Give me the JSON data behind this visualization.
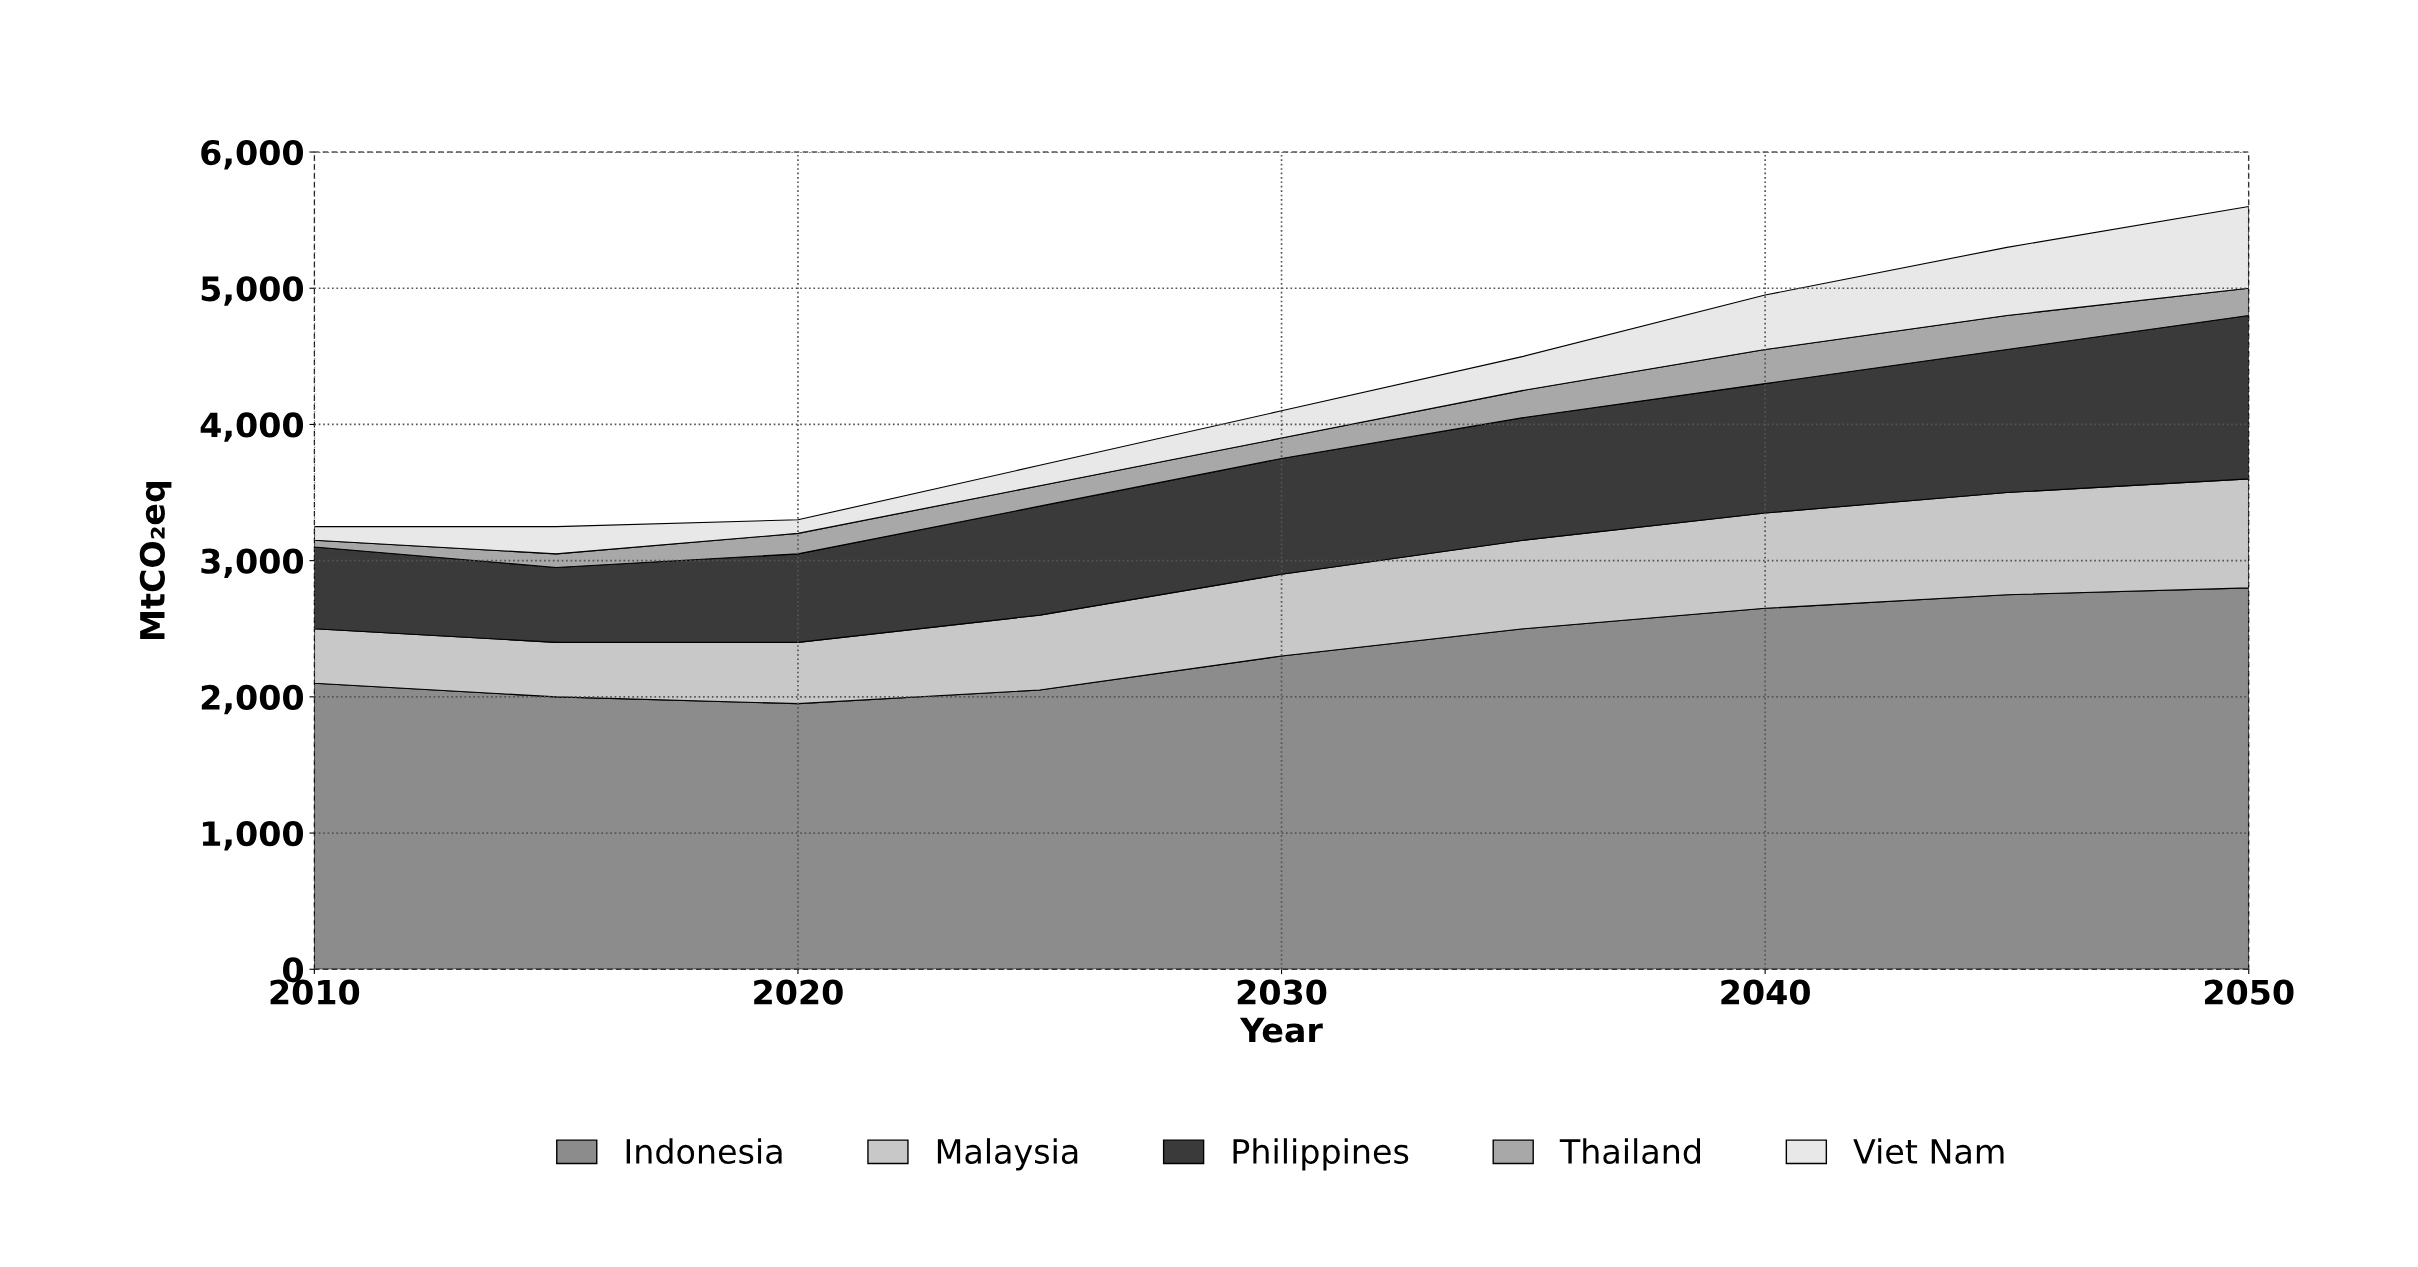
{
  "chart_data": {
    "type": "area",
    "stacked": true,
    "xlabel": "Year",
    "ylabel": "MtCO₂eq",
    "x": [
      2010,
      2015,
      2020,
      2025,
      2030,
      2035,
      2040,
      2045,
      2050
    ],
    "series": [
      {
        "name": "Indonesia",
        "color": "#8c8c8c",
        "values": [
          2100,
          2000,
          1950,
          2050,
          2300,
          2500,
          2650,
          2750,
          2800
        ]
      },
      {
        "name": "Malaysia",
        "color": "#c8c8c8",
        "values": [
          400,
          400,
          450,
          550,
          600,
          650,
          700,
          750,
          800
        ]
      },
      {
        "name": "Philippines",
        "color": "#3a3a3a",
        "values": [
          600,
          550,
          650,
          800,
          850,
          900,
          950,
          1050,
          1200
        ]
      },
      {
        "name": "Thailand",
        "color": "#a8a8a8",
        "values": [
          50,
          100,
          150,
          150,
          150,
          200,
          250,
          250,
          200
        ]
      },
      {
        "name": "Viet Nam",
        "color": "#e8e8e8",
        "values": [
          100,
          200,
          100,
          150,
          200,
          250,
          400,
          500,
          600
        ]
      }
    ],
    "xlim": [
      2010,
      2050
    ],
    "xticks": [
      2010,
      2020,
      2030,
      2040,
      2050
    ],
    "ylim": [
      0,
      6000
    ],
    "yticks": [
      0,
      {
        "value": 1000,
        "label": "1,000"
      },
      {
        "value": 2000,
        "label": "2,000"
      },
      {
        "value": 3000,
        "label": "3,000"
      },
      {
        "value": 4000,
        "label": "4,000"
      },
      {
        "value": 5000,
        "label": "5,000"
      },
      {
        "value": 6000,
        "label": "6,000"
      }
    ],
    "grid": true,
    "legend": "bottom"
  }
}
